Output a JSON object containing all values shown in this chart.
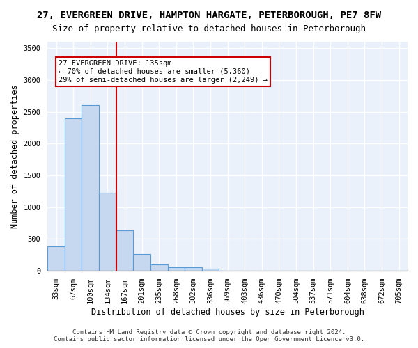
{
  "title1": "27, EVERGREEN DRIVE, HAMPTON HARGATE, PETERBOROUGH, PE7 8FW",
  "title2": "Size of property relative to detached houses in Peterborough",
  "xlabel": "Distribution of detached houses by size in Peterborough",
  "ylabel": "Number of detached properties",
  "footer1": "Contains HM Land Registry data © Crown copyright and database right 2024.",
  "footer2": "Contains public sector information licensed under the Open Government Licence v3.0.",
  "bins": [
    "33sqm",
    "67sqm",
    "100sqm",
    "134sqm",
    "167sqm",
    "201sqm",
    "235sqm",
    "268sqm",
    "302sqm",
    "336sqm",
    "369sqm",
    "403sqm",
    "436sqm",
    "470sqm",
    "504sqm",
    "537sqm",
    "571sqm",
    "604sqm",
    "638sqm",
    "672sqm",
    "705sqm"
  ],
  "values": [
    390,
    2400,
    2600,
    1230,
    640,
    260,
    100,
    60,
    60,
    40,
    0,
    0,
    0,
    0,
    0,
    0,
    0,
    0,
    0,
    0,
    0
  ],
  "bar_color": "#c5d8f0",
  "bar_edge_color": "#5b9bd5",
  "bar_linewidth": 0.8,
  "background_color": "#eaf1fb",
  "grid_color": "#ffffff",
  "ylim": [
    0,
    3600
  ],
  "yticks": [
    0,
    500,
    1000,
    1500,
    2000,
    2500,
    3000,
    3500
  ],
  "annotation_text": "27 EVERGREEN DRIVE: 135sqm\n← 70% of detached houses are smaller (5,360)\n29% of semi-detached houses are larger (2,249) →",
  "annotation_color": "#cc0000",
  "vline_color": "#cc0000",
  "vline_x": 3,
  "title_fontsize": 10,
  "subtitle_fontsize": 9,
  "axis_label_fontsize": 8.5,
  "tick_fontsize": 7.5,
  "annotation_fontsize": 7.5,
  "footer_fontsize": 6.5
}
